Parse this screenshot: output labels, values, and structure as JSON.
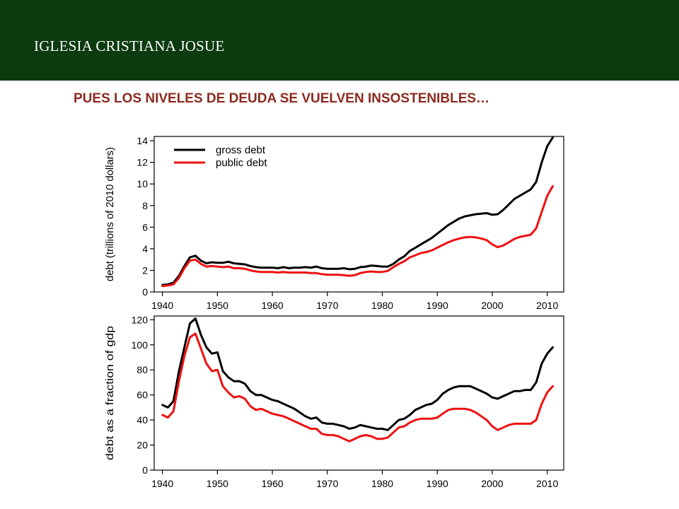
{
  "header": {
    "org_name": "IGLESIA CRISTIANA JOSUE"
  },
  "slide": {
    "title": "PUES LOS NIVELES DE DEUDA SE VUELVEN INSOSTENIBLES…"
  },
  "colors": {
    "header_band": "#0c3b10",
    "title": "#8b2a1f",
    "gross": "#000000",
    "public": "#ee1111"
  },
  "chart_data": [
    {
      "type": "line",
      "ylabel": "debt (trillions of 2010 dollars)",
      "xlim": [
        1938.5,
        2013
      ],
      "ylim": [
        0,
        14.4
      ],
      "xticks": [
        1940,
        1950,
        1960,
        1970,
        1980,
        1990,
        2000,
        2010
      ],
      "yticks": [
        0,
        2,
        4,
        6,
        8,
        10,
        12,
        14
      ],
      "legend": "top-left",
      "grid": false,
      "series": [
        {
          "name": "gross debt",
          "color": "#000000",
          "x": [
            1940,
            1941,
            1942,
            1943,
            1944,
            1945,
            1946,
            1947,
            1948,
            1949,
            1950,
            1951,
            1952,
            1953,
            1954,
            1955,
            1956,
            1957,
            1958,
            1959,
            1960,
            1961,
            1962,
            1963,
            1964,
            1965,
            1966,
            1967,
            1968,
            1969,
            1970,
            1971,
            1972,
            1973,
            1974,
            1975,
            1976,
            1977,
            1978,
            1979,
            1980,
            1981,
            1982,
            1983,
            1984,
            1985,
            1986,
            1987,
            1988,
            1989,
            1990,
            1991,
            1992,
            1993,
            1994,
            1995,
            1996,
            1997,
            1998,
            1999,
            2000,
            2001,
            2002,
            2003,
            2004,
            2005,
            2006,
            2007,
            2008,
            2009,
            2010,
            2011
          ],
          "values": [
            0.65,
            0.7,
            0.85,
            1.5,
            2.4,
            3.2,
            3.35,
            2.9,
            2.65,
            2.75,
            2.7,
            2.7,
            2.8,
            2.65,
            2.6,
            2.55,
            2.4,
            2.3,
            2.25,
            2.25,
            2.25,
            2.2,
            2.3,
            2.2,
            2.25,
            2.25,
            2.3,
            2.25,
            2.35,
            2.2,
            2.15,
            2.15,
            2.15,
            2.2,
            2.1,
            2.15,
            2.3,
            2.35,
            2.45,
            2.4,
            2.35,
            2.35,
            2.6,
            3.0,
            3.3,
            3.8,
            4.1,
            4.4,
            4.7,
            5.0,
            5.4,
            5.8,
            6.2,
            6.5,
            6.8,
            7.0,
            7.1,
            7.2,
            7.25,
            7.3,
            7.15,
            7.2,
            7.6,
            8.1,
            8.6,
            8.9,
            9.2,
            9.5,
            10.2,
            12.0,
            13.5,
            14.3
          ]
        },
        {
          "name": "public debt",
          "color": "#ee1111",
          "x": [
            1940,
            1941,
            1942,
            1943,
            1944,
            1945,
            1946,
            1947,
            1948,
            1949,
            1950,
            1951,
            1952,
            1953,
            1954,
            1955,
            1956,
            1957,
            1958,
            1959,
            1960,
            1961,
            1962,
            1963,
            1964,
            1965,
            1966,
            1967,
            1968,
            1969,
            1970,
            1971,
            1972,
            1973,
            1974,
            1975,
            1976,
            1977,
            1978,
            1979,
            1980,
            1981,
            1982,
            1983,
            1984,
            1985,
            1986,
            1987,
            1988,
            1989,
            1990,
            1991,
            1992,
            1993,
            1994,
            1995,
            1996,
            1997,
            1998,
            1999,
            2000,
            2001,
            2002,
            2003,
            2004,
            2005,
            2006,
            2007,
            2008,
            2009,
            2010,
            2011
          ],
          "values": [
            0.55,
            0.6,
            0.7,
            1.3,
            2.2,
            2.9,
            3.0,
            2.6,
            2.35,
            2.4,
            2.35,
            2.3,
            2.35,
            2.2,
            2.2,
            2.15,
            2.0,
            1.9,
            1.85,
            1.85,
            1.85,
            1.8,
            1.85,
            1.8,
            1.8,
            1.8,
            1.8,
            1.75,
            1.75,
            1.65,
            1.6,
            1.6,
            1.6,
            1.55,
            1.5,
            1.55,
            1.75,
            1.85,
            1.9,
            1.85,
            1.85,
            1.95,
            2.3,
            2.6,
            2.85,
            3.2,
            3.4,
            3.6,
            3.7,
            3.85,
            4.1,
            4.35,
            4.6,
            4.8,
            4.95,
            5.05,
            5.1,
            5.05,
            4.95,
            4.8,
            4.4,
            4.15,
            4.3,
            4.6,
            4.9,
            5.1,
            5.2,
            5.3,
            5.9,
            7.4,
            8.9,
            9.8
          ]
        }
      ]
    },
    {
      "type": "line",
      "ylabel": "debt as a fraction of gdp",
      "xlim": [
        1938.5,
        2013
      ],
      "ylim": [
        0,
        123
      ],
      "xticks": [
        1940,
        1950,
        1960,
        1970,
        1980,
        1990,
        2000,
        2010
      ],
      "yticks": [
        0,
        20,
        40,
        60,
        80,
        100,
        120
      ],
      "grid": false,
      "series": [
        {
          "name": "gross debt",
          "color": "#000000",
          "x": [
            1940,
            1941,
            1942,
            1943,
            1944,
            1945,
            1946,
            1947,
            1948,
            1949,
            1950,
            1951,
            1952,
            1953,
            1954,
            1955,
            1956,
            1957,
            1958,
            1959,
            1960,
            1961,
            1962,
            1963,
            1964,
            1965,
            1966,
            1967,
            1968,
            1969,
            1970,
            1971,
            1972,
            1973,
            1974,
            1975,
            1976,
            1977,
            1978,
            1979,
            1980,
            1981,
            1982,
            1983,
            1984,
            1985,
            1986,
            1987,
            1988,
            1989,
            1990,
            1991,
            1992,
            1993,
            1994,
            1995,
            1996,
            1997,
            1998,
            1999,
            2000,
            2001,
            2002,
            2003,
            2004,
            2005,
            2006,
            2007,
            2008,
            2009,
            2010,
            2011
          ],
          "values": [
            52,
            50,
            55,
            79,
            98,
            117,
            121,
            108,
            98,
            93,
            94,
            79,
            74,
            71,
            71,
            69,
            63,
            60,
            60,
            58,
            56,
            55,
            53,
            51,
            49,
            46,
            43,
            41,
            42,
            38,
            37,
            37,
            36,
            35,
            33,
            34,
            36,
            35,
            34,
            33,
            33,
            32,
            36,
            40,
            41,
            44,
            48,
            50,
            52,
            53,
            56,
            61,
            64,
            66,
            67,
            67,
            67,
            65,
            63,
            61,
            58,
            57,
            59,
            61,
            63,
            63,
            64,
            64,
            70,
            85,
            93,
            98
          ]
        },
        {
          "name": "public debt",
          "color": "#ee1111",
          "x": [
            1940,
            1941,
            1942,
            1943,
            1944,
            1945,
            1946,
            1947,
            1948,
            1949,
            1950,
            1951,
            1952,
            1953,
            1954,
            1955,
            1956,
            1957,
            1958,
            1959,
            1960,
            1961,
            1962,
            1963,
            1964,
            1965,
            1966,
            1967,
            1968,
            1969,
            1970,
            1971,
            1972,
            1973,
            1974,
            1975,
            1976,
            1977,
            1978,
            1979,
            1980,
            1981,
            1982,
            1983,
            1984,
            1985,
            1986,
            1987,
            1988,
            1989,
            1990,
            1991,
            1992,
            1993,
            1994,
            1995,
            1996,
            1997,
            1998,
            1999,
            2000,
            2001,
            2002,
            2003,
            2004,
            2005,
            2006,
            2007,
            2008,
            2009,
            2010,
            2011
          ],
          "values": [
            44,
            42,
            47,
            71,
            91,
            106,
            109,
            97,
            85,
            79,
            80,
            67,
            62,
            58,
            59,
            57,
            51,
            48,
            49,
            47,
            45,
            44,
            43,
            41,
            39,
            37,
            35,
            33,
            33,
            29,
            28,
            28,
            27,
            25,
            23,
            25,
            27,
            28,
            27,
            25,
            25,
            26,
            30,
            34,
            35,
            38,
            40,
            41,
            41,
            41,
            42,
            45,
            48,
            49,
            49,
            49,
            48,
            46,
            43,
            40,
            35,
            32,
            34,
            36,
            37,
            37,
            37,
            37,
            40,
            53,
            62,
            67
          ]
        }
      ]
    }
  ]
}
